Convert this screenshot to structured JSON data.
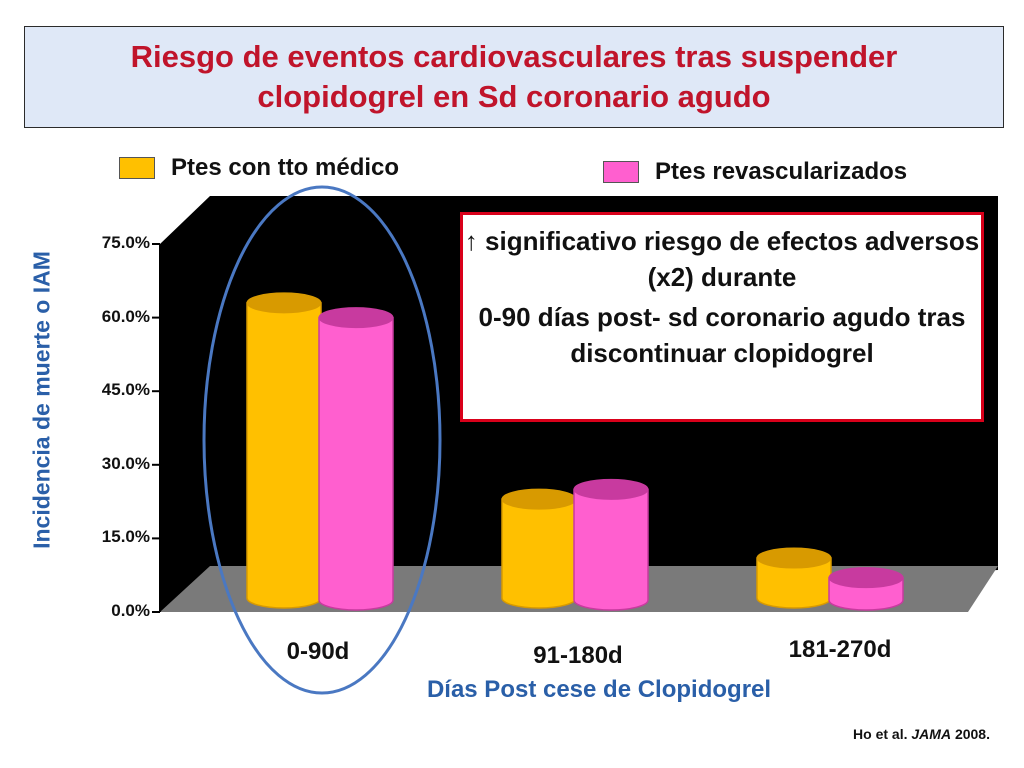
{
  "title": "Riesgo de eventos cardiovasculares tras suspender clopidogrel en Sd coronario agudo",
  "colors": {
    "title": "#c0142b",
    "series1": "#ffc000",
    "series1_dark": "#d89a00",
    "series2": "#ff5fcf",
    "series2_dark": "#c83a9f",
    "plot_bg": "#000000",
    "floor": "#7a7a7a",
    "axis_label": "#2a5fa8",
    "callout_border": "#d9001a",
    "ellipse": "#4a78c2"
  },
  "callout": {
    "line1": "↑ significativo riesgo de efectos adversos (x2) durante",
    "line2": "0-90 días post- sd coronario agudo tras discontinuar clopidogrel"
  },
  "citation": {
    "author": "Ho et al. ",
    "journal": "JAMA",
    "year": " 2008."
  },
  "chart_data": {
    "type": "bar",
    "title": "Riesgo de eventos cardiovasculares tras suspender clopidogrel en Sd coronario agudo",
    "categories": [
      "0-90d",
      "91-180d",
      "181-270d"
    ],
    "series": [
      {
        "name": "Ptes con tto médico",
        "values": [
          63,
          23,
          11
        ]
      },
      {
        "name": "Ptes revascularizados",
        "values": [
          60,
          25,
          7
        ]
      }
    ],
    "xlabel": "Días Post cese de Clopidogrel",
    "ylabel": "Incidencia de muerte o IAM",
    "ylim": [
      0,
      75
    ],
    "yticks": [
      "0.0%",
      "15.0%",
      "30.0%",
      "45.0%",
      "60.0%",
      "75.0%"
    ],
    "grid": false,
    "legend_position": "top"
  }
}
